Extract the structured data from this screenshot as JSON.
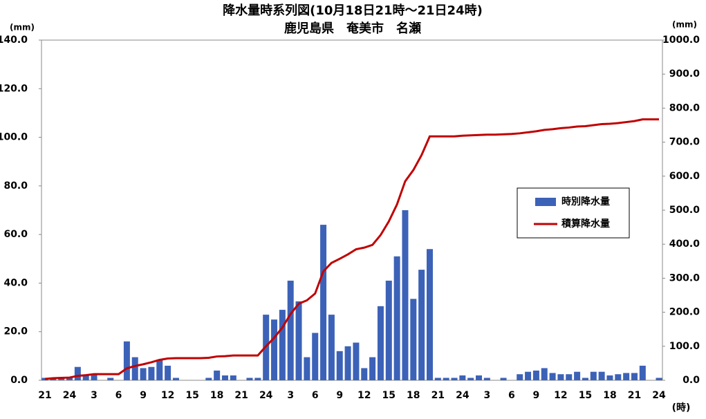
{
  "chart_data": {
    "type": "bar_line",
    "title": "降水量時系列図(10月18日21時～21日24時)",
    "subtitle": "鹿児島県　奄美市　名瀬",
    "y_unit": "(mm)",
    "y2_unit": "(mm)",
    "x_unit": "(時)",
    "categories": [
      "21",
      null,
      null,
      "24",
      null,
      null,
      "3",
      null,
      null,
      "6",
      null,
      null,
      "9",
      null,
      null,
      "12",
      null,
      null,
      "15",
      null,
      null,
      "18",
      null,
      null,
      "21",
      null,
      null,
      "24",
      null,
      null,
      "3",
      null,
      null,
      "6",
      null,
      null,
      "9",
      null,
      null,
      "12",
      null,
      null,
      "15",
      null,
      null,
      "18",
      null,
      null,
      "21",
      null,
      null,
      "24",
      null,
      null,
      "3",
      null,
      null,
      "6",
      null,
      null,
      "9",
      null,
      null,
      "12",
      null,
      null,
      "15",
      null,
      null,
      "18",
      null,
      null,
      "21",
      null,
      null,
      "24"
    ],
    "series": [
      {
        "name": "時別降水量",
        "color": "#3c62b8",
        "kind": "bar",
        "axis": "y",
        "values": [
          1,
          1,
          1,
          1,
          5.5,
          2,
          2.5,
          0,
          1,
          0,
          16,
          9.5,
          5,
          5.5,
          8.5,
          6,
          1,
          0,
          0,
          0,
          1,
          4,
          2,
          2,
          0,
          1,
          1,
          27,
          25,
          29,
          41,
          32.5,
          9.5,
          19.5,
          64,
          27,
          12,
          14,
          15.5,
          5,
          9.5,
          30.5,
          41,
          51,
          70,
          33.5,
          45.5,
          54,
          1,
          1,
          1,
          2,
          1,
          2,
          1,
          0,
          1,
          0,
          2.5,
          3.5,
          4,
          5,
          3,
          2.5,
          2.5,
          3.5,
          1,
          3.5,
          3.5,
          2,
          2.5,
          3,
          3,
          6,
          0,
          1
        ]
      },
      {
        "name": "積算降水量",
        "color": "#c00000",
        "kind": "line",
        "axis": "y2",
        "values": [
          4,
          6,
          7,
          8,
          13,
          15,
          18,
          18,
          18,
          18,
          35,
          42,
          47,
          53,
          60,
          64,
          65,
          65,
          65,
          65,
          66,
          70,
          71,
          73,
          73,
          73,
          73,
          100,
          125,
          155,
          195,
          225,
          235,
          255,
          320,
          345,
          357,
          370,
          385,
          390,
          398,
          427,
          467,
          517,
          585,
          618,
          662,
          717,
          717,
          717,
          717,
          719,
          720,
          721,
          722,
          722,
          723,
          724,
          726,
          729,
          732,
          736,
          738,
          741,
          743,
          746,
          747,
          750,
          753,
          754,
          756,
          759,
          762,
          767,
          767,
          767
        ]
      }
    ],
    "ylim": [
      0,
      140
    ],
    "yticks": [
      {
        "value": 0,
        "label": "0.0"
      },
      {
        "value": 20,
        "label": "20.0"
      },
      {
        "value": 40,
        "label": "40.0"
      },
      {
        "value": 60,
        "label": "60.0"
      },
      {
        "value": 80,
        "label": "80.0"
      },
      {
        "value": 100,
        "label": "100.0"
      },
      {
        "value": 120,
        "label": "120.0"
      },
      {
        "value": 140,
        "label": "140.0"
      }
    ],
    "y2lim": [
      0,
      1000
    ],
    "y2ticks": [
      {
        "value": 0,
        "label": "0.0"
      },
      {
        "value": 100,
        "label": "100.0"
      },
      {
        "value": 200,
        "label": "200.0"
      },
      {
        "value": 300,
        "label": "300.0"
      },
      {
        "value": 400,
        "label": "400.0"
      },
      {
        "value": 500,
        "label": "500.0"
      },
      {
        "value": 600,
        "label": "600.0"
      },
      {
        "value": 700,
        "label": "700.0"
      },
      {
        "value": 800,
        "label": "800.0"
      },
      {
        "value": 900,
        "label": "900.0"
      },
      {
        "value": 1000,
        "label": "1000.0"
      }
    ],
    "legend": "right"
  }
}
